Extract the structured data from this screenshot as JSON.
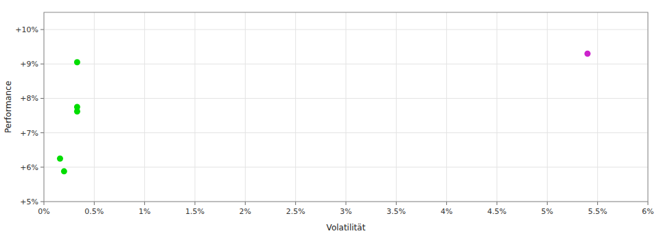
{
  "chart_data": {
    "type": "scatter",
    "xlabel": "Volatilität",
    "ylabel": "Performance",
    "xlim": [
      0,
      0.06
    ],
    "ylim": [
      0.05,
      0.105
    ],
    "xticks": [
      {
        "value": 0,
        "label": "0%"
      },
      {
        "value": 0.005,
        "label": "0.5%"
      },
      {
        "value": 0.01,
        "label": "1%"
      },
      {
        "value": 0.015,
        "label": "1.5%"
      },
      {
        "value": 0.02,
        "label": "2%"
      },
      {
        "value": 0.025,
        "label": "2.5%"
      },
      {
        "value": 0.03,
        "label": "3%"
      },
      {
        "value": 0.035,
        "label": "3.5%"
      },
      {
        "value": 0.04,
        "label": "4%"
      },
      {
        "value": 0.045,
        "label": "4.5%"
      },
      {
        "value": 0.05,
        "label": "5%"
      },
      {
        "value": 0.055,
        "label": "5.5%"
      },
      {
        "value": 0.06,
        "label": "6%"
      }
    ],
    "yticks": [
      {
        "value": 0.05,
        "label": "+5%"
      },
      {
        "value": 0.06,
        "label": "+6%"
      },
      {
        "value": 0.07,
        "label": "+7%"
      },
      {
        "value": 0.08,
        "label": "+8%"
      },
      {
        "value": 0.09,
        "label": "+9%"
      },
      {
        "value": 0.1,
        "label": "+10%"
      }
    ],
    "grid": true,
    "marker": "circle",
    "series": [
      {
        "color": "#00dd00",
        "x": [
          0.0033,
          0.0033,
          0.0033,
          0.0016,
          0.002
        ],
        "values": [
          0.0905,
          0.0775,
          0.0762,
          0.0625,
          0.0588
        ]
      },
      {
        "color": "#cc22cc",
        "x": [
          0.054
        ],
        "values": [
          0.093
        ]
      }
    ]
  }
}
